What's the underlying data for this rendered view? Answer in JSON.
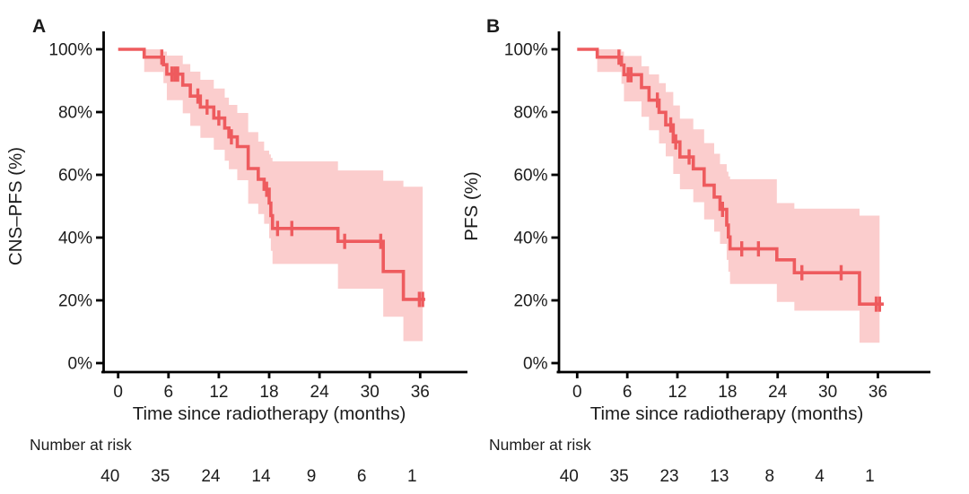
{
  "figure": {
    "panels": [
      {
        "label": "A",
        "y_axis_title": "CNS–PFS (%)",
        "x_axis_title": "Time since radiotherapy (months)",
        "risk_label": "Number at risk"
      },
      {
        "label": "B",
        "y_axis_title": "PFS (%)",
        "x_axis_title": "Time since radiotherapy (months)",
        "risk_label": "Number at risk"
      }
    ],
    "colors": {
      "curve": "#ee5b5e",
      "band": "#fbcdcd",
      "axis": "#000000",
      "text": "#1c1c1c"
    }
  },
  "chart_data": [
    {
      "type": "line",
      "subtype": "kaplan-meier-step",
      "panel": "A",
      "ylabel": "CNS–PFS (%)",
      "xlabel": "Time since radiotherapy (months)",
      "xlim": [
        0,
        39
      ],
      "ylim": [
        0,
        100
      ],
      "xticks": [
        0,
        6,
        12,
        18,
        24,
        30,
        36
      ],
      "ytick_labels": [
        "0%",
        "20%",
        "40%",
        "60%",
        "80%",
        "100%"
      ],
      "ytick_values": [
        0,
        20,
        40,
        60,
        80,
        100
      ],
      "grid": false,
      "legend": "none",
      "series": [
        {
          "name": "CNS-PFS",
          "steps_t_pct": [
            [
              0,
              100
            ],
            [
              3.1,
              97.5
            ],
            [
              5.4,
              95.1
            ],
            [
              5.8,
              92.1
            ],
            [
              7.7,
              88.6
            ],
            [
              8.6,
              85.1
            ],
            [
              9.8,
              81.6
            ],
            [
              11.4,
              78.1
            ],
            [
              12.7,
              74.9
            ],
            [
              13.2,
              72.1
            ],
            [
              14.2,
              69.0
            ],
            [
              15.5,
              62.0
            ],
            [
              16.7,
              58.6
            ],
            [
              17.4,
              55.4
            ],
            [
              18.0,
              51.0
            ],
            [
              18.2,
              47.0
            ],
            [
              18.4,
              42.9
            ],
            [
              26.2,
              38.8
            ],
            [
              31.6,
              29.2
            ],
            [
              34.0,
              20.3
            ]
          ],
          "end_t": 36.6
        }
      ],
      "censor_marks_t_pct": [
        [
          5.2,
          97.5
        ],
        [
          6.4,
          92.1
        ],
        [
          6.75,
          92.1
        ],
        [
          7.1,
          92.1
        ],
        [
          9.5,
          85.1
        ],
        [
          10.6,
          81.6
        ],
        [
          12.0,
          78.1
        ],
        [
          13.5,
          72.1
        ],
        [
          17.7,
          55.4
        ],
        [
          19.0,
          42.9
        ],
        [
          20.7,
          42.9
        ],
        [
          27.0,
          38.8
        ],
        [
          31.3,
          38.8
        ],
        [
          35.9,
          20.3
        ],
        [
          36.3,
          20.3
        ]
      ],
      "confidence_band_t_lo_hi": [
        [
          3.1,
          92.8,
          100
        ],
        [
          5.4,
          89.2,
          99.3
        ],
        [
          5.8,
          83.8,
          98.0
        ],
        [
          7.7,
          79.6,
          95.3
        ],
        [
          8.6,
          75.6,
          92.9
        ],
        [
          9.8,
          71.8,
          90.3
        ],
        [
          11.4,
          68.0,
          87.5
        ],
        [
          12.7,
          64.5,
          84.6
        ],
        [
          13.2,
          61.8,
          82.3
        ],
        [
          14.2,
          58.3,
          79.7
        ],
        [
          15.5,
          50.8,
          73.6
        ],
        [
          16.7,
          47.5,
          70.6
        ],
        [
          17.4,
          44.4,
          67.7
        ],
        [
          18.0,
          39.8,
          66.5
        ],
        [
          18.2,
          35.8,
          65.4
        ],
        [
          18.4,
          31.6,
          64.3
        ],
        [
          26.2,
          23.7,
          61.4
        ],
        [
          31.6,
          14.8,
          58.1
        ],
        [
          34.0,
          7.0,
          56.2
        ]
      ],
      "band_end_t": 36.3,
      "number_at_risk": {
        "times": [
          0,
          6,
          12,
          18,
          24,
          30,
          36
        ],
        "counts": [
          40,
          35,
          24,
          14,
          9,
          6,
          1
        ]
      }
    },
    {
      "type": "line",
      "subtype": "kaplan-meier-step",
      "panel": "B",
      "ylabel": "PFS (%)",
      "xlabel": "Time since radiotherapy (months)",
      "xlim": [
        0,
        39
      ],
      "ylim": [
        0,
        100
      ],
      "xticks": [
        0,
        6,
        12,
        18,
        24,
        30,
        36
      ],
      "ytick_labels": [
        "0%",
        "20%",
        "40%",
        "60%",
        "80%",
        "100%"
      ],
      "ytick_values": [
        0,
        20,
        40,
        60,
        80,
        100
      ],
      "grid": false,
      "legend": "none",
      "series": [
        {
          "name": "PFS",
          "steps_t_pct": [
            [
              0,
              100
            ],
            [
              2.4,
              97.5
            ],
            [
              5.3,
              95.0
            ],
            [
              5.6,
              91.9
            ],
            [
              7.7,
              87.8
            ],
            [
              8.6,
              83.8
            ],
            [
              9.8,
              79.9
            ],
            [
              10.6,
              75.9
            ],
            [
              11.5,
              70.5
            ],
            [
              12.3,
              65.7
            ],
            [
              13.9,
              61.9
            ],
            [
              15.2,
              56.7
            ],
            [
              16.4,
              52.9
            ],
            [
              17.1,
              49.0
            ],
            [
              17.9,
              44.0
            ],
            [
              18.1,
              40.2
            ],
            [
              18.3,
              36.4
            ],
            [
              23.9,
              32.9
            ],
            [
              26.0,
              28.8
            ],
            [
              33.8,
              18.8
            ]
          ],
          "end_t": 36.7
        }
      ],
      "censor_marks_t_pct": [
        [
          5.0,
          97.5
        ],
        [
          6.1,
          91.9
        ],
        [
          6.45,
          91.9
        ],
        [
          9.6,
          83.8
        ],
        [
          11.2,
          75.9
        ],
        [
          11.8,
          70.5
        ],
        [
          13.4,
          65.7
        ],
        [
          17.4,
          49.0
        ],
        [
          19.7,
          36.4
        ],
        [
          21.7,
          36.4
        ],
        [
          26.9,
          28.8
        ],
        [
          31.6,
          28.8
        ],
        [
          35.8,
          18.8
        ],
        [
          36.2,
          18.8
        ]
      ],
      "confidence_band_t_lo_hi": [
        [
          2.4,
          92.8,
          100
        ],
        [
          5.3,
          89.0,
          99.3
        ],
        [
          5.6,
          83.4,
          97.9
        ],
        [
          7.7,
          78.5,
          94.6
        ],
        [
          8.6,
          74.2,
          92.0
        ],
        [
          9.8,
          70.0,
          89.2
        ],
        [
          10.6,
          65.9,
          86.4
        ],
        [
          11.5,
          60.3,
          82.1
        ],
        [
          12.3,
          55.4,
          77.9
        ],
        [
          13.9,
          51.3,
          74.5
        ],
        [
          15.2,
          45.8,
          70.1
        ],
        [
          16.4,
          41.9,
          66.7
        ],
        [
          17.1,
          38.0,
          63.4
        ],
        [
          17.9,
          32.9,
          61.0
        ],
        [
          18.1,
          29.1,
          59.5
        ],
        [
          18.3,
          25.2,
          58.6
        ],
        [
          23.9,
          19.5,
          51.0
        ],
        [
          26.0,
          16.7,
          49.2
        ],
        [
          33.8,
          6.5,
          47.0
        ]
      ],
      "band_end_t": 36.2,
      "number_at_risk": {
        "times": [
          0,
          6,
          12,
          18,
          24,
          30,
          36
        ],
        "counts": [
          40,
          35,
          23,
          13,
          8,
          4,
          1
        ]
      }
    }
  ]
}
